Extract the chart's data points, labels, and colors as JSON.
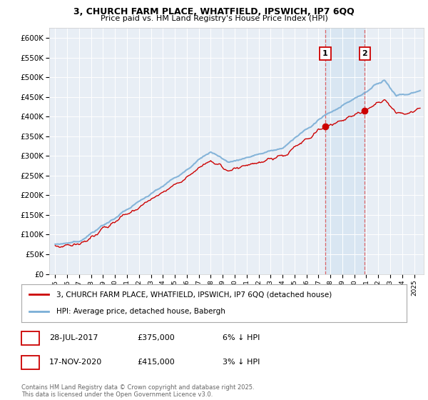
{
  "title_line1": "3, CHURCH FARM PLACE, WHATFIELD, IPSWICH, IP7 6QQ",
  "title_line2": "Price paid vs. HM Land Registry's House Price Index (HPI)",
  "ylim": [
    0,
    625000
  ],
  "yticks": [
    0,
    50000,
    100000,
    150000,
    200000,
    250000,
    300000,
    350000,
    400000,
    450000,
    500000,
    550000,
    600000
  ],
  "ytick_labels": [
    "£0",
    "£50K",
    "£100K",
    "£150K",
    "£200K",
    "£250K",
    "£300K",
    "£350K",
    "£400K",
    "£450K",
    "£500K",
    "£550K",
    "£600K"
  ],
  "legend_label_red": "3, CHURCH FARM PLACE, WHATFIELD, IPSWICH, IP7 6QQ (detached house)",
  "legend_label_blue": "HPI: Average price, detached house, Babergh",
  "annotation1_label": "1",
  "annotation1_date": "28-JUL-2017",
  "annotation1_price": 375000,
  "annotation2_label": "2",
  "annotation2_date": "17-NOV-2020",
  "annotation2_price": 415000,
  "footer": "Contains HM Land Registry data © Crown copyright and database right 2025.\nThis data is licensed under the Open Government Licence v3.0.",
  "sale1_year": 2017.57,
  "sale2_year": 2020.88,
  "background_color": "#f0f4f8",
  "plot_bg_color": "#e8eef5",
  "red_color": "#cc0000",
  "blue_color": "#7aaed6",
  "blue_fill_color": "#b8d0e8",
  "vline_color": "#dd4444",
  "shade_color": "#c8ddf0",
  "row1_text1": "28-JUL-2017",
  "row1_text2": "£375,000",
  "row1_text3": "6% ↓ HPI",
  "row2_text1": "17-NOV-2020",
  "row2_text2": "£415,000",
  "row2_text3": "3% ↓ HPI"
}
